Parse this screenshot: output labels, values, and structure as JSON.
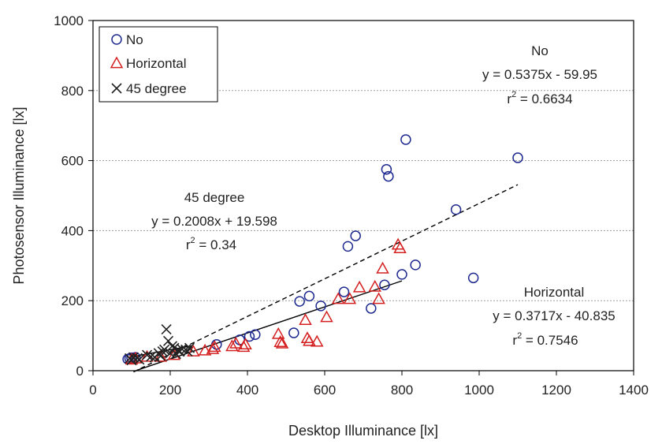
{
  "chart_data": {
    "type": "scatter",
    "xlabel": "Desktop Illuminance [lx]",
    "ylabel": "Photosensor Illuminance  [lx]",
    "xlim": [
      0,
      1400
    ],
    "ylim": [
      0,
      1000
    ],
    "xticks": [
      0,
      200,
      400,
      600,
      800,
      1000,
      1200,
      1400
    ],
    "yticks": [
      0,
      200,
      400,
      600,
      800,
      1000
    ],
    "grid": "horizontal dotted",
    "legend_position": "top-left",
    "series": [
      {
        "name": "No",
        "marker": "circle",
        "color": "#1f2a8f",
        "points": [
          [
            90,
            33
          ],
          [
            95,
            35
          ],
          [
            100,
            37
          ],
          [
            110,
            38
          ],
          [
            320,
            75
          ],
          [
            380,
            88
          ],
          [
            405,
            98
          ],
          [
            420,
            103
          ],
          [
            520,
            108
          ],
          [
            535,
            198
          ],
          [
            560,
            213
          ],
          [
            590,
            185
          ],
          [
            660,
            355
          ],
          [
            680,
            385
          ],
          [
            650,
            225
          ],
          [
            720,
            178
          ],
          [
            755,
            245
          ],
          [
            760,
            575
          ],
          [
            765,
            555
          ],
          [
            800,
            275
          ],
          [
            810,
            660
          ],
          [
            835,
            302
          ],
          [
            940,
            460
          ],
          [
            985,
            265
          ],
          [
            1100,
            608
          ]
        ],
        "trendline": {
          "label": "No",
          "equation": "y = 0.5375x - 59.95",
          "r2_label": "r",
          "r2_superscript": "2",
          "r2_value": " = 0.6634",
          "slope": 0.5375,
          "intercept": -59.95,
          "x_range": [
            105,
            1100
          ],
          "style": "dashed"
        }
      },
      {
        "name": "Horizontal",
        "marker": "triangle",
        "color": "#d42020",
        "points": [
          [
            100,
            32
          ],
          [
            110,
            35
          ],
          [
            140,
            40
          ],
          [
            175,
            40
          ],
          [
            210,
            45
          ],
          [
            260,
            55
          ],
          [
            290,
            58
          ],
          [
            310,
            62
          ],
          [
            315,
            68
          ],
          [
            360,
            70
          ],
          [
            370,
            78
          ],
          [
            390,
            68
          ],
          [
            395,
            75
          ],
          [
            480,
            105
          ],
          [
            485,
            82
          ],
          [
            490,
            78
          ],
          [
            550,
            145
          ],
          [
            555,
            93
          ],
          [
            560,
            85
          ],
          [
            580,
            83
          ],
          [
            605,
            153
          ],
          [
            635,
            205
          ],
          [
            665,
            205
          ],
          [
            690,
            238
          ],
          [
            730,
            240
          ],
          [
            740,
            205
          ],
          [
            750,
            292
          ],
          [
            790,
            360
          ],
          [
            795,
            350
          ]
        ],
        "trendline": {
          "label": "Horizontal",
          "equation": "y = 0.3717x - 40.835",
          "r2_label": "r",
          "r2_superscript": "2",
          "r2_value": " = 0.7546",
          "slope": 0.3717,
          "intercept": -40.835,
          "x_range": [
            115,
            800
          ],
          "style": "solid"
        }
      },
      {
        "name": "45 degree",
        "marker": "x",
        "color": "#222222",
        "points": [
          [
            95,
            35
          ],
          [
            100,
            30
          ],
          [
            105,
            38
          ],
          [
            115,
            36
          ],
          [
            120,
            32
          ],
          [
            140,
            45
          ],
          [
            150,
            40
          ],
          [
            160,
            38
          ],
          [
            170,
            50
          ],
          [
            175,
            42
          ],
          [
            180,
            55
          ],
          [
            185,
            60
          ],
          [
            190,
            118
          ],
          [
            195,
            85
          ],
          [
            200,
            50
          ],
          [
            205,
            70
          ],
          [
            210,
            65
          ],
          [
            215,
            48
          ],
          [
            220,
            58
          ],
          [
            225,
            55
          ],
          [
            230,
            62
          ],
          [
            240,
            60
          ],
          [
            245,
            55
          ],
          [
            250,
            65
          ]
        ],
        "trendline": {
          "label": "45 degree",
          "equation": "y = 0.2008x + 19.598",
          "r2_label": "r",
          "r2_superscript": "2",
          "r2_value": " = 0.34",
          "slope": 0.2008,
          "intercept": 19.598,
          "x_range": [
            95,
            255
          ],
          "style": "solid"
        }
      }
    ]
  }
}
